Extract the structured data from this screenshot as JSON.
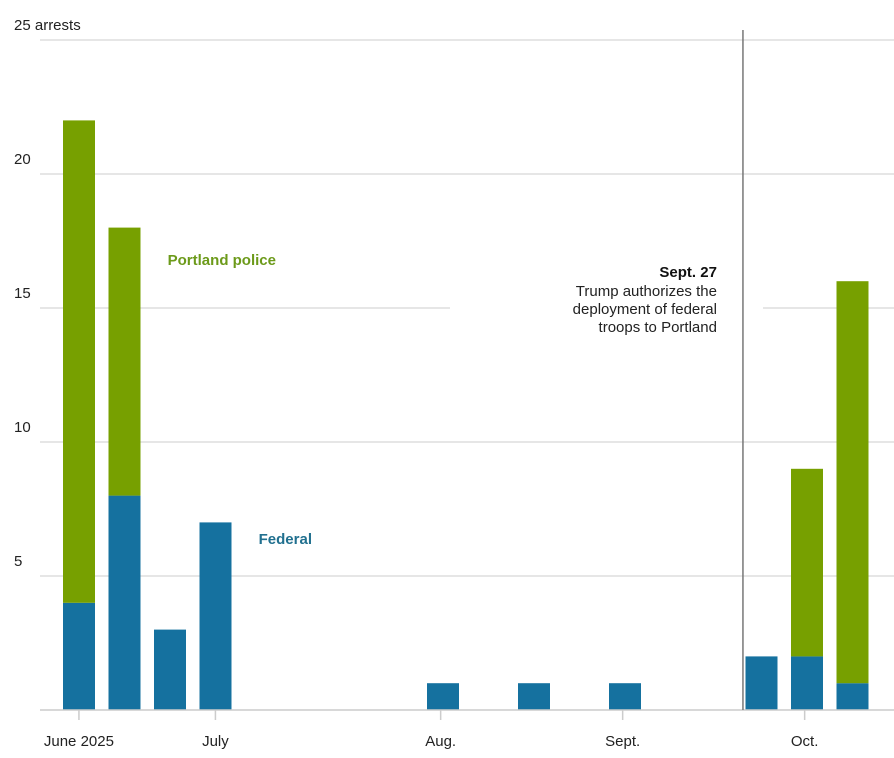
{
  "chart_data": {
    "type": "bar",
    "stacked": true,
    "title": "",
    "xlabel": "",
    "ylabel": "arrests",
    "ylim": [
      0,
      25
    ],
    "y_ticks": [
      {
        "value": 5,
        "label": "5"
      },
      {
        "value": 10,
        "label": "10"
      },
      {
        "value": 15,
        "label": "15"
      },
      {
        "value": 20,
        "label": "20"
      },
      {
        "value": 25,
        "label": "25 arrests"
      }
    ],
    "grid": true,
    "x_unit": "week",
    "x_slots": 18,
    "x_ticks": [
      {
        "slot": 0.35,
        "label": "June 2025"
      },
      {
        "slot": 3.35,
        "label": "July"
      },
      {
        "slot": 8.3,
        "label": "Aug.",
        "anchor": "middle"
      },
      {
        "slot": 12.3,
        "label": "Sept."
      },
      {
        "slot": 16.3,
        "label": "Oct."
      }
    ],
    "series": [
      {
        "name": "Federal",
        "color": "#15719f",
        "label_color": "#21708f"
      },
      {
        "name": "Portland police",
        "color": "#77a000",
        "label_color": "#6c9a1a"
      }
    ],
    "bars": [
      {
        "slot": 0,
        "values": [
          4,
          18
        ]
      },
      {
        "slot": 1,
        "values": [
          8,
          10
        ]
      },
      {
        "slot": 2,
        "values": [
          3,
          0
        ]
      },
      {
        "slot": 3,
        "values": [
          7,
          0
        ]
      },
      {
        "slot": 8,
        "values": [
          1,
          0
        ]
      },
      {
        "slot": 10,
        "values": [
          1,
          0
        ]
      },
      {
        "slot": 12,
        "values": [
          1,
          0
        ]
      },
      {
        "slot": 15,
        "values": [
          2,
          0
        ]
      },
      {
        "slot": 16,
        "values": [
          2,
          7
        ]
      },
      {
        "slot": 17,
        "values": [
          1,
          15
        ]
      }
    ],
    "series_labels": [
      {
        "series": "Portland police",
        "text": "Portland police",
        "near_slot": 2.3,
        "value": 16.6
      },
      {
        "series": "Federal",
        "text": "Federal",
        "near_slot": 4.3,
        "value": 6.2
      }
    ],
    "annotation": {
      "slot": 14.9,
      "title": "Sept. 27",
      "lines": [
        "Trump authorizes the",
        "deployment of federal",
        "troops to Portland"
      ]
    }
  }
}
